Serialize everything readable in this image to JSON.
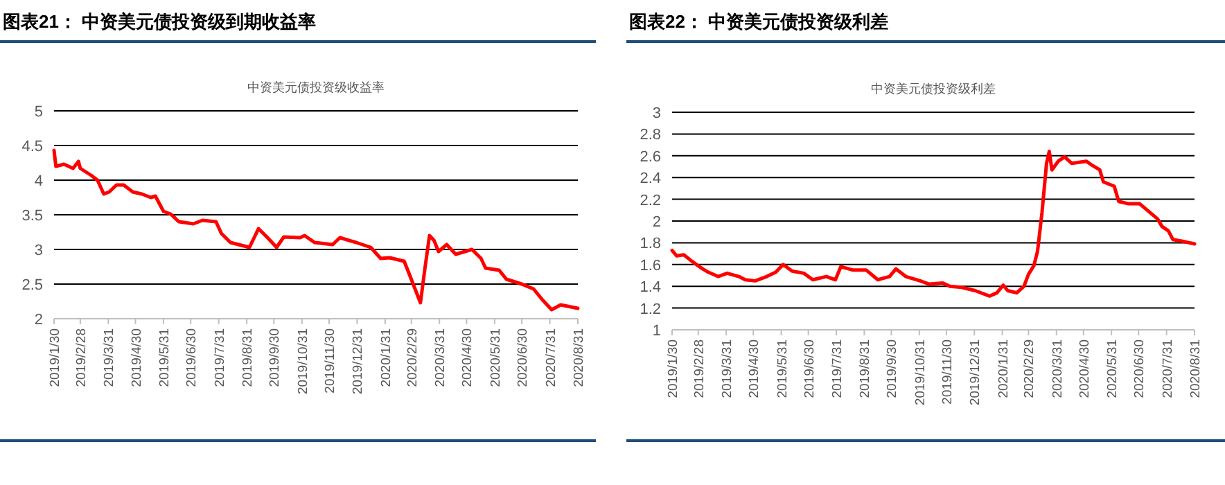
{
  "chart_data": [
    {
      "type": "line",
      "title": "图表21： 中资美元债投资级到期收益率",
      "subtitle": "中资美元债投资级收益率",
      "color": "#ff0000",
      "grid": "y",
      "x": [
        "2019-01-30",
        "2019-02-01",
        "2019-02-10",
        "2019-02-20",
        "2019-02-26",
        "2019-02-28",
        "2019-03-12",
        "2019-03-19",
        "2019-03-26",
        "2019-04-01",
        "2019-04-09",
        "2019-04-17",
        "2019-04-27",
        "2019-05-07",
        "2019-05-17",
        "2019-05-22",
        "2019-05-31",
        "2019-06-08",
        "2019-06-17",
        "2019-07-03",
        "2019-07-13",
        "2019-07-28",
        "2019-08-03",
        "2019-08-13",
        "2019-09-03",
        "2019-09-13",
        "2019-09-23",
        "2019-10-03",
        "2019-10-11",
        "2019-10-29",
        "2019-11-03",
        "2019-11-14",
        "2019-12-04",
        "2019-12-12",
        "2019-12-30",
        "2020-01-15",
        "2020-01-26",
        "2020-02-05",
        "2020-02-21",
        "2020-02-28",
        "2020-03-10",
        "2020-03-15",
        "2020-03-20",
        "2020-03-25",
        "2020-03-30",
        "2020-04-08",
        "2020-04-18",
        "2020-05-06",
        "2020-05-16",
        "2020-05-21",
        "2020-06-05",
        "2020-06-13",
        "2020-06-30",
        "2020-07-13",
        "2020-07-23",
        "2020-08-02",
        "2020-08-12",
        "2020-08-31"
      ],
      "values": [
        4.43,
        4.2,
        4.23,
        4.17,
        4.27,
        4.17,
        4.07,
        4.0,
        3.8,
        3.83,
        3.93,
        3.93,
        3.83,
        3.8,
        3.75,
        3.77,
        3.55,
        3.51,
        3.4,
        3.37,
        3.42,
        3.4,
        3.23,
        3.1,
        3.03,
        3.3,
        3.17,
        3.03,
        3.18,
        3.17,
        3.2,
        3.1,
        3.07,
        3.17,
        3.1,
        3.03,
        2.87,
        2.88,
        2.83,
        2.6,
        2.23,
        2.73,
        3.2,
        3.13,
        2.97,
        3.07,
        2.93,
        3.0,
        2.87,
        2.73,
        2.7,
        2.57,
        2.5,
        2.43,
        2.27,
        2.13,
        2.2,
        2.15
      ],
      "xlim": [
        "2019-01-30",
        "2020-08-31"
      ],
      "ylim": [
        2,
        5
      ],
      "yticks": [
        2,
        2.5,
        3,
        3.5,
        4,
        4.5,
        5
      ],
      "xticks": [
        {
          "value": "2019-01-30",
          "label": "2019/1/30"
        },
        {
          "value": "2019-02-28",
          "label": "2019/2/28"
        },
        {
          "value": "2019-03-31",
          "label": "2019/3/31"
        },
        {
          "value": "2019-04-30",
          "label": "2019/4/30"
        },
        {
          "value": "2019-05-31",
          "label": "2019/5/31"
        },
        {
          "value": "2019-06-30",
          "label": "2019/6/30"
        },
        {
          "value": "2019-07-31",
          "label": "2019/7/31"
        },
        {
          "value": "2019-08-31",
          "label": "2019/8/31"
        },
        {
          "value": "2019-09-30",
          "label": "2019/9/30"
        },
        {
          "value": "2019-10-31",
          "label": "2019/10/31"
        },
        {
          "value": "2019-11-30",
          "label": "2019/11/30"
        },
        {
          "value": "2019-12-31",
          "label": "2019/12/31"
        },
        {
          "value": "2020-01-31",
          "label": "2020/1/31"
        },
        {
          "value": "2020-02-29",
          "label": "2020/2/29"
        },
        {
          "value": "2020-03-31",
          "label": "2020/3/31"
        },
        {
          "value": "2020-04-30",
          "label": "2020/4/30"
        },
        {
          "value": "2020-05-31",
          "label": "2020/5/31"
        },
        {
          "value": "2020-06-30",
          "label": "2020/6/30"
        },
        {
          "value": "2020-07-31",
          "label": "2020/7/31"
        },
        {
          "value": "2020-08-31",
          "label": "2020/8/31"
        }
      ]
    },
    {
      "type": "line",
      "title": "图表22： 中资美元债投资级利差",
      "subtitle": "中资美元债投资级利差",
      "color": "#ff0000",
      "grid": "y",
      "x": [
        "2019-01-30",
        "2019-02-04",
        "2019-02-12",
        "2019-02-21",
        "2019-03-03",
        "2019-03-11",
        "2019-03-22",
        "2019-04-01",
        "2019-04-14",
        "2019-04-21",
        "2019-05-02",
        "2019-05-15",
        "2019-05-25",
        "2019-06-02",
        "2019-06-12",
        "2019-06-25",
        "2019-07-05",
        "2019-07-20",
        "2019-07-30",
        "2019-08-05",
        "2019-08-18",
        "2019-09-02",
        "2019-09-15",
        "2019-09-28",
        "2019-10-05",
        "2019-10-16",
        "2019-11-01",
        "2019-11-11",
        "2019-11-26",
        "2019-12-04",
        "2019-12-17",
        "2020-01-01",
        "2020-01-17",
        "2020-01-25",
        "2020-02-01",
        "2020-02-06",
        "2020-02-16",
        "2020-02-24",
        "2020-02-29",
        "2020-03-06",
        "2020-03-10",
        "2020-03-15",
        "2020-03-20",
        "2020-03-23",
        "2020-03-26",
        "2020-04-02",
        "2020-04-09",
        "2020-04-17",
        "2020-05-03",
        "2020-05-10",
        "2020-05-18",
        "2020-05-22",
        "2020-06-03",
        "2020-06-08",
        "2020-06-18",
        "2020-07-01",
        "2020-07-11",
        "2020-07-21",
        "2020-07-26",
        "2020-08-02",
        "2020-08-07",
        "2020-08-20",
        "2020-08-31"
      ],
      "values": [
        1.73,
        1.68,
        1.69,
        1.63,
        1.57,
        1.53,
        1.49,
        1.52,
        1.49,
        1.46,
        1.45,
        1.49,
        1.53,
        1.6,
        1.54,
        1.52,
        1.46,
        1.49,
        1.46,
        1.58,
        1.55,
        1.55,
        1.46,
        1.49,
        1.56,
        1.49,
        1.45,
        1.42,
        1.43,
        1.4,
        1.39,
        1.36,
        1.31,
        1.34,
        1.41,
        1.36,
        1.34,
        1.4,
        1.51,
        1.59,
        1.72,
        2.08,
        2.53,
        2.64,
        2.47,
        2.55,
        2.59,
        2.53,
        2.55,
        2.51,
        2.47,
        2.36,
        2.32,
        2.18,
        2.16,
        2.16,
        2.09,
        2.02,
        1.95,
        1.91,
        1.83,
        1.81,
        1.79
      ],
      "xlim": [
        "2019-01-30",
        "2020-08-31"
      ],
      "ylim": [
        1,
        3
      ],
      "yticks": [
        1,
        1.2,
        1.4,
        1.6,
        1.8,
        2,
        2.2,
        2.4,
        2.6,
        2.8,
        3
      ],
      "xticks": [
        {
          "value": "2019-01-30",
          "label": "2019/1/30"
        },
        {
          "value": "2019-02-28",
          "label": "2019/2/28"
        },
        {
          "value": "2019-03-31",
          "label": "2019/3/31"
        },
        {
          "value": "2019-04-30",
          "label": "2019/4/30"
        },
        {
          "value": "2019-05-31",
          "label": "2019/5/31"
        },
        {
          "value": "2019-06-30",
          "label": "2019/6/30"
        },
        {
          "value": "2019-07-31",
          "label": "2019/7/31"
        },
        {
          "value": "2019-08-31",
          "label": "2019/8/31"
        },
        {
          "value": "2019-09-30",
          "label": "2019/9/30"
        },
        {
          "value": "2019-10-31",
          "label": "2019/10/31"
        },
        {
          "value": "2019-11-30",
          "label": "2019/11/30"
        },
        {
          "value": "2019-12-31",
          "label": "2019/12/31"
        },
        {
          "value": "2020-01-31",
          "label": "2020/1/31"
        },
        {
          "value": "2020-02-29",
          "label": "2020/2/29"
        },
        {
          "value": "2020-03-31",
          "label": "2020/3/31"
        },
        {
          "value": "2020-04-30",
          "label": "2020/4/30"
        },
        {
          "value": "2020-05-31",
          "label": "2020/5/31"
        },
        {
          "value": "2020-06-30",
          "label": "2020/6/30"
        },
        {
          "value": "2020-07-31",
          "label": "2020/7/31"
        },
        {
          "value": "2020-08-31",
          "label": "2020/8/31"
        }
      ]
    }
  ]
}
